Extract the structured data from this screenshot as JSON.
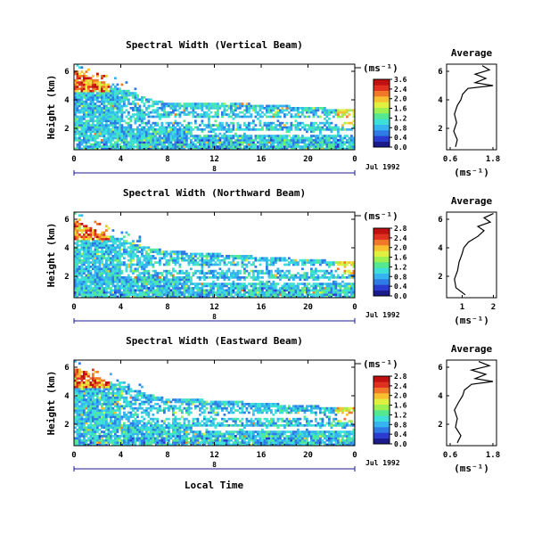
{
  "figure": {
    "xlabel": "Local Time",
    "date_label": "Jul 1992",
    "colorbar_unit": "(ms⁻¹)",
    "average_title": "Average",
    "average_xlabel": "(ms⁻¹)"
  },
  "chart_data": [
    {
      "type": "heatmap",
      "title": "Spectral Width (Vertical Beam)",
      "ylabel": "Height (km)",
      "x_ticks": [
        "0",
        "4",
        "8",
        "12",
        "16",
        "20",
        "0"
      ],
      "y_ticks": [
        "2",
        "4",
        "6"
      ],
      "xlim": [
        0,
        24
      ],
      "ylim": [
        0.5,
        6.5
      ],
      "day_marker": "8",
      "colorbar": {
        "range": [
          0,
          3.6
        ],
        "ticks": [
          "3.6",
          "2.4",
          "2.0",
          "1.6",
          "1.2",
          "0.8",
          "0.4",
          "0.0"
        ]
      },
      "echo_top_km": [
        [
          0,
          6.0
        ],
        [
          2,
          5.4
        ],
        [
          4,
          4.8
        ],
        [
          6,
          4.2
        ],
        [
          8,
          3.8
        ],
        [
          12,
          3.8
        ],
        [
          16,
          3.7
        ],
        [
          20,
          3.5
        ],
        [
          24,
          3.3
        ]
      ],
      "average": {
        "x_ticks": [
          "0.6",
          "1.8"
        ],
        "xlim": [
          0.5,
          1.9
        ],
        "y_ticks": [
          "2",
          "4",
          "6"
        ],
        "profile_height": [
          0.7,
          1.2,
          1.8,
          2.4,
          3.0,
          3.6,
          4.0,
          4.4,
          4.8,
          5.0,
          5.2,
          5.5,
          5.8,
          6.1,
          6.4
        ],
        "profile_value": [
          0.75,
          0.8,
          0.7,
          0.78,
          0.72,
          0.8,
          0.9,
          0.95,
          1.1,
          1.8,
          1.3,
          1.6,
          1.3,
          1.7,
          1.5
        ]
      }
    },
    {
      "type": "heatmap",
      "title": "Spectral Width (Northward Beam)",
      "ylabel": "Height (km)",
      "x_ticks": [
        "0",
        "4",
        "8",
        "12",
        "16",
        "20",
        "0"
      ],
      "y_ticks": [
        "2",
        "4",
        "6"
      ],
      "xlim": [
        0,
        24
      ],
      "ylim": [
        0.5,
        6.5
      ],
      "day_marker": "8",
      "colorbar": {
        "range": [
          0,
          2.8
        ],
        "ticks": [
          "2.8",
          "2.4",
          "2.0",
          "1.6",
          "1.2",
          "0.8",
          "0.4",
          "0.0"
        ]
      },
      "echo_top_km": [
        [
          0,
          6.0
        ],
        [
          2,
          5.2
        ],
        [
          4,
          4.6
        ],
        [
          6,
          4.1
        ],
        [
          8,
          3.8
        ],
        [
          12,
          3.6
        ],
        [
          16,
          3.4
        ],
        [
          20,
          3.2
        ],
        [
          24,
          3.0
        ]
      ],
      "average": {
        "x_ticks": [
          "1",
          "2"
        ],
        "xlim": [
          0.5,
          2.1
        ],
        "y_ticks": [
          "2",
          "4",
          "6"
        ],
        "profile_height": [
          0.7,
          1.2,
          1.8,
          2.4,
          3.0,
          3.6,
          4.0,
          4.4,
          4.8,
          5.2,
          5.5,
          5.8,
          6.1,
          6.4
        ],
        "profile_value": [
          1.1,
          0.8,
          0.75,
          0.85,
          0.9,
          1.0,
          1.05,
          1.2,
          1.5,
          1.7,
          1.5,
          1.9,
          1.7,
          2.0
        ]
      }
    },
    {
      "type": "heatmap",
      "title": "Spectral Width (Eastward Beam)",
      "ylabel": "Height (km)",
      "x_ticks": [
        "0",
        "4",
        "8",
        "12",
        "16",
        "20",
        "0"
      ],
      "y_ticks": [
        "2",
        "4",
        "6"
      ],
      "xlim": [
        0,
        24
      ],
      "ylim": [
        0.5,
        6.5
      ],
      "day_marker": "8",
      "colorbar": {
        "range": [
          0,
          2.8
        ],
        "ticks": [
          "2.8",
          "2.4",
          "2.0",
          "1.6",
          "1.2",
          "0.8",
          "0.4",
          "0.0"
        ]
      },
      "echo_top_km": [
        [
          0,
          6.0
        ],
        [
          2,
          5.3
        ],
        [
          4,
          4.7
        ],
        [
          6,
          4.2
        ],
        [
          8,
          3.8
        ],
        [
          12,
          3.7
        ],
        [
          16,
          3.5
        ],
        [
          20,
          3.3
        ],
        [
          24,
          3.2
        ]
      ],
      "average": {
        "x_ticks": [
          "0.6",
          "1.8"
        ],
        "xlim": [
          0.5,
          1.9
        ],
        "y_ticks": [
          "2",
          "4",
          "6"
        ],
        "profile_height": [
          0.7,
          1.2,
          1.8,
          2.4,
          3.0,
          3.6,
          4.0,
          4.4,
          4.8,
          5.0,
          5.2,
          5.5,
          5.8,
          6.1,
          6.4
        ],
        "profile_value": [
          0.8,
          0.9,
          0.75,
          0.8,
          0.72,
          0.85,
          0.95,
          1.0,
          1.2,
          1.8,
          1.3,
          1.6,
          1.2,
          1.7,
          1.4
        ]
      }
    }
  ]
}
